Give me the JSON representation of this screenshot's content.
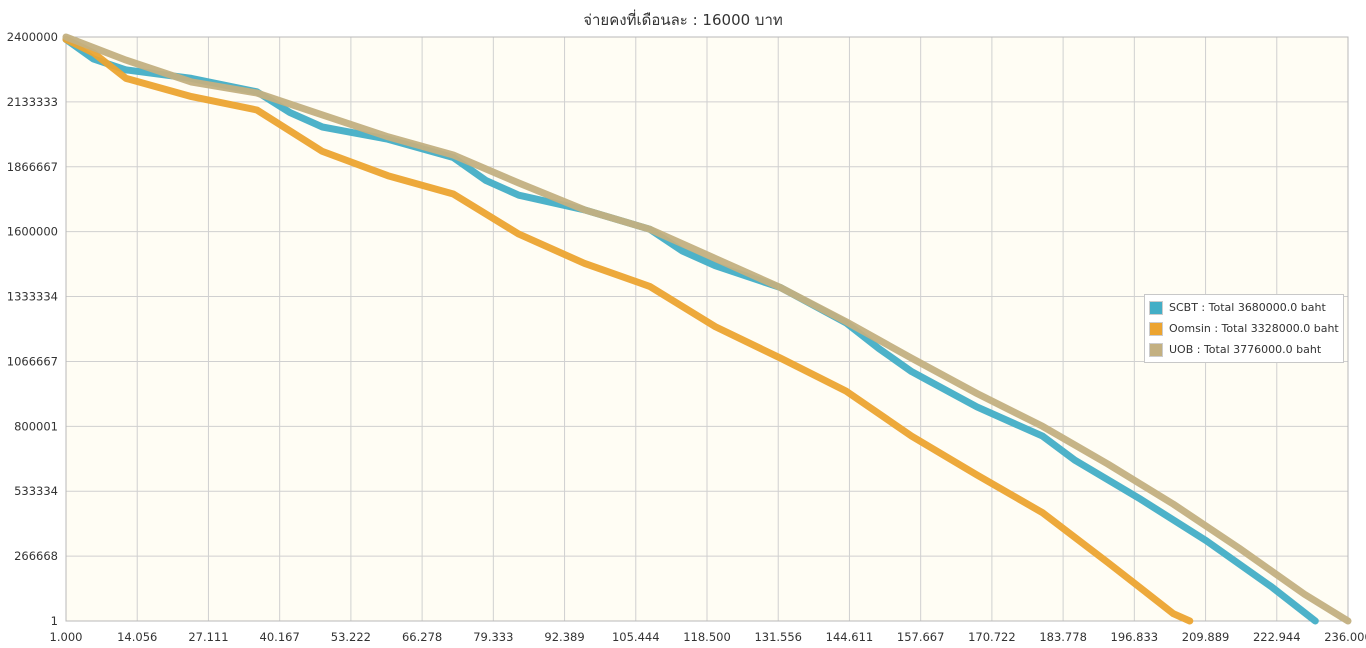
{
  "chart_data": {
    "type": "line",
    "title": "จ่ายคงที่เดือนละ : 16000 บาท",
    "xlabel": "",
    "ylabel": "",
    "xlim": [
      1,
      236
    ],
    "ylim": [
      1,
      2400000
    ],
    "x_ticks": [
      "1.000",
      "14.056",
      "27.111",
      "40.167",
      "53.222",
      "66.278",
      "79.333",
      "92.389",
      "105.444",
      "118.500",
      "131.556",
      "144.611",
      "157.667",
      "170.722",
      "183.778",
      "196.833",
      "209.889",
      "222.944",
      "236.000"
    ],
    "y_ticks": [
      "2400000",
      "2133333",
      "1866667",
      "1600000",
      "1333334",
      "1066667",
      "800001",
      "533334",
      "266668",
      "1"
    ],
    "grid": true,
    "legend_position": "right",
    "series": [
      {
        "name": "SCBT : Total 3680000.0 baht",
        "color": "#43aec6",
        "points": [
          [
            1,
            2390000
          ],
          [
            6,
            2310000
          ],
          [
            12,
            2265000
          ],
          [
            24,
            2230000
          ],
          [
            36,
            2175000
          ],
          [
            42,
            2090000
          ],
          [
            48,
            2030000
          ],
          [
            60,
            1980000
          ],
          [
            72,
            1905000
          ],
          [
            78,
            1810000
          ],
          [
            84,
            1750000
          ],
          [
            96,
            1690000
          ],
          [
            108,
            1610000
          ],
          [
            114,
            1520000
          ],
          [
            120,
            1460000
          ],
          [
            132,
            1370000
          ],
          [
            144,
            1225000
          ],
          [
            150,
            1120000
          ],
          [
            156,
            1025000
          ],
          [
            168,
            880000
          ],
          [
            180,
            760000
          ],
          [
            186,
            660000
          ],
          [
            198,
            500000
          ],
          [
            210,
            330000
          ],
          [
            222,
            140000
          ],
          [
            230,
            1
          ]
        ]
      },
      {
        "name": "Oomsin : Total 3328000.0 baht",
        "color": "#eca430",
        "points": [
          [
            1,
            2390000
          ],
          [
            6,
            2335000
          ],
          [
            12,
            2230000
          ],
          [
            24,
            2155000
          ],
          [
            36,
            2100000
          ],
          [
            48,
            1930000
          ],
          [
            60,
            1830000
          ],
          [
            72,
            1755000
          ],
          [
            84,
            1590000
          ],
          [
            96,
            1470000
          ],
          [
            108,
            1375000
          ],
          [
            120,
            1210000
          ],
          [
            132,
            1080000
          ],
          [
            144,
            945000
          ],
          [
            156,
            760000
          ],
          [
            168,
            600000
          ],
          [
            180,
            445000
          ],
          [
            192,
            240000
          ],
          [
            204,
            30000
          ],
          [
            207,
            1
          ]
        ]
      },
      {
        "name": "UOB : Total 3776000.0 baht",
        "color": "#c3b081",
        "points": [
          [
            1,
            2400000
          ],
          [
            12,
            2305000
          ],
          [
            24,
            2215000
          ],
          [
            36,
            2170000
          ],
          [
            48,
            2080000
          ],
          [
            60,
            1990000
          ],
          [
            72,
            1915000
          ],
          [
            84,
            1800000
          ],
          [
            96,
            1690000
          ],
          [
            108,
            1610000
          ],
          [
            120,
            1490000
          ],
          [
            132,
            1370000
          ],
          [
            144,
            1230000
          ],
          [
            156,
            1080000
          ],
          [
            168,
            935000
          ],
          [
            180,
            800000
          ],
          [
            192,
            645000
          ],
          [
            204,
            480000
          ],
          [
            216,
            300000
          ],
          [
            228,
            110000
          ],
          [
            236,
            1
          ]
        ]
      }
    ]
  }
}
